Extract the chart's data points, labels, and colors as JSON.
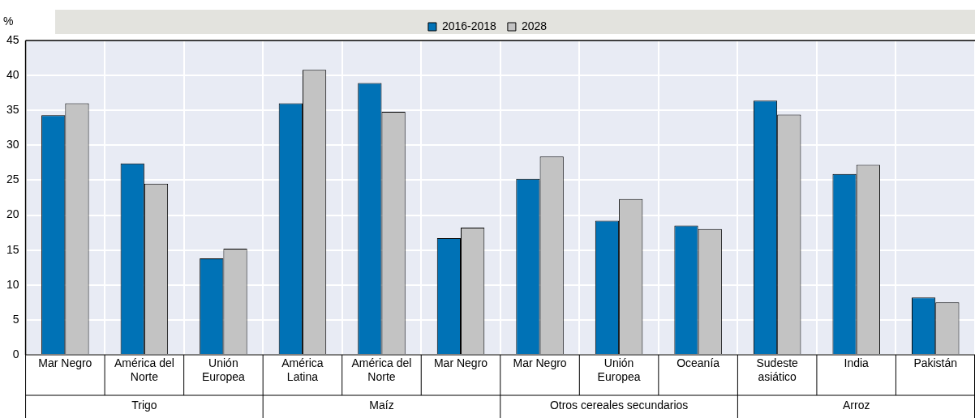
{
  "chart_data": {
    "type": "bar",
    "ylabel": "%",
    "categories": [
      "Mar Negro",
      "América del Norte",
      "Unión Europea",
      "América Latina",
      "América del Norte",
      "Mar Negro",
      "Mar Negro",
      "Unión Europea",
      "Oceanía",
      "Sudeste asiático",
      "India",
      "Pakistán"
    ],
    "series": [
      {
        "name": "2016-2018",
        "color": "#0072b6",
        "values": [
          34.3,
          27.4,
          13.8,
          36,
          38.9,
          16.7,
          25.2,
          19.2,
          18.5,
          36.4,
          25.9,
          8.2
        ]
      },
      {
        "name": "2028",
        "color": "#c3c3c3",
        "values": [
          36,
          24.5,
          15.2,
          40.8,
          34.8,
          18.2,
          28.4,
          22.3,
          18,
          34.4,
          27.2,
          7.5
        ]
      }
    ],
    "annotations": [
      "Trigo",
      "Maíz",
      "Otros cereales secundarios",
      "Arroz"
    ],
    "ylim": [
      0,
      45
    ],
    "yticks": [
      0,
      5,
      10,
      15,
      20,
      25,
      30,
      35,
      40,
      45
    ],
    "grid": true,
    "legend": "top"
  }
}
